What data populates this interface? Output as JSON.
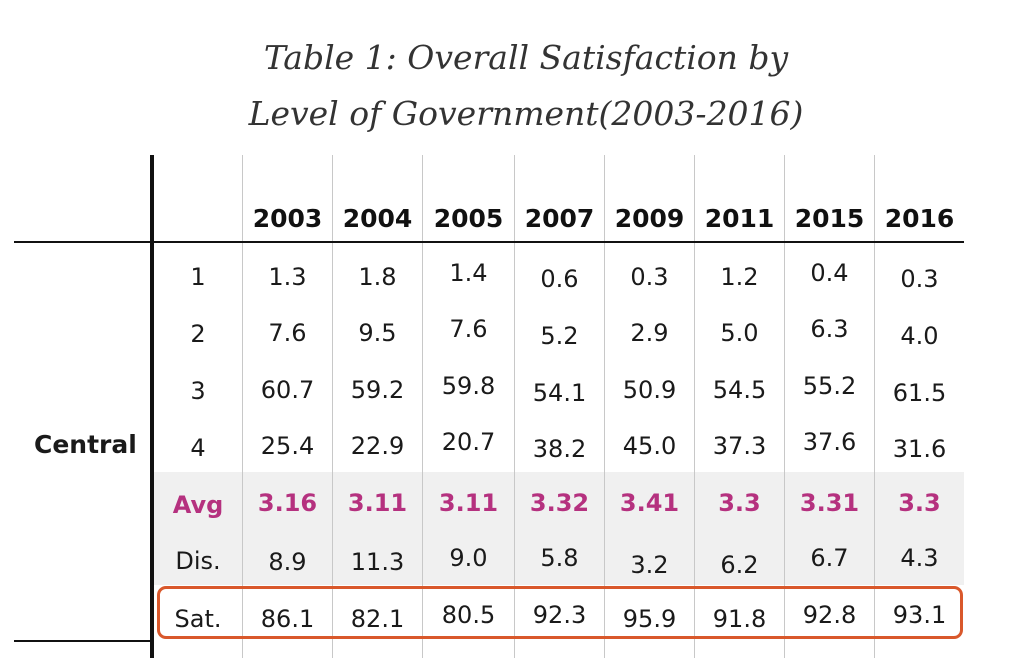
{
  "title": {
    "line1": "Table 1: Overall Satisfaction by",
    "line2": "Level of Government(2003-2016)"
  },
  "table": {
    "years": [
      "2003",
      "2004",
      "2005",
      "2007",
      "2009",
      "2011",
      "2015",
      "2016"
    ],
    "group_label": "Central",
    "rows": [
      {
        "label": "1",
        "values": [
          "1.3",
          "1.8",
          "1.4",
          "0.6",
          "0.3",
          "1.2",
          "0.4",
          "0.3"
        ]
      },
      {
        "label": "2",
        "values": [
          "7.6",
          "9.5",
          "7.6",
          "5.2",
          "2.9",
          "5.0",
          "6.3",
          "4.0"
        ]
      },
      {
        "label": "3",
        "values": [
          "60.7",
          "59.2",
          "59.8",
          "54.1",
          "50.9",
          "54.5",
          "55.2",
          "61.5"
        ]
      },
      {
        "label": "4",
        "values": [
          "25.4",
          "22.9",
          "20.7",
          "38.2",
          "45.0",
          "37.3",
          "37.6",
          "31.6"
        ]
      },
      {
        "label": "Avg",
        "values": [
          "3.16",
          "3.11",
          "3.11",
          "3.32",
          "3.41",
          "3.3",
          "3.31",
          "3.3"
        ]
      },
      {
        "label": "Dis.",
        "values": [
          "8.9",
          "11.3",
          "9.0",
          "5.8",
          "3.2",
          "6.2",
          "6.7",
          "4.3"
        ]
      },
      {
        "label": "Sat.",
        "values": [
          "86.1",
          "82.1",
          "80.5",
          "92.3",
          "95.9",
          "91.8",
          "92.8",
          "93.1"
        ]
      }
    ]
  },
  "colors": {
    "avg_text": "#b5317f",
    "sat_highlight": "#d9582b",
    "band": "#f0f0f0"
  }
}
